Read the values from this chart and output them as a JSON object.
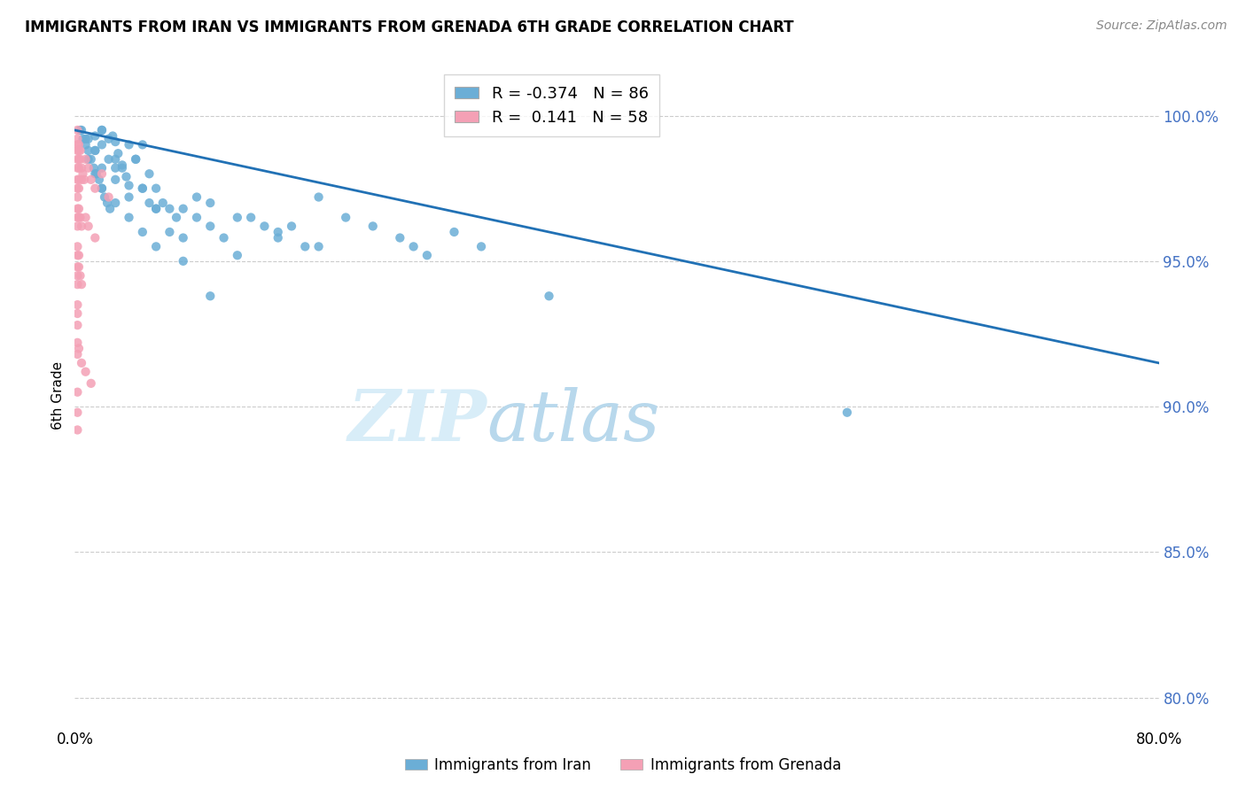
{
  "title": "IMMIGRANTS FROM IRAN VS IMMIGRANTS FROM GRENADA 6TH GRADE CORRELATION CHART",
  "source": "Source: ZipAtlas.com",
  "ylabel": "6th Grade",
  "yticks": [
    80.0,
    85.0,
    90.0,
    95.0,
    100.0
  ],
  "ytick_labels": [
    "80.0%",
    "85.0%",
    "90.0%",
    "95.0%",
    "100.0%"
  ],
  "xmin": 0.0,
  "xmax": 80.0,
  "ymin": 79.0,
  "ymax": 101.8,
  "iran_R": -0.374,
  "iran_N": 86,
  "grenada_R": 0.141,
  "grenada_N": 58,
  "iran_color": "#6baed6",
  "grenada_color": "#f4a0b5",
  "iran_line_color": "#2171b5",
  "iran_line_x0": 0.0,
  "iran_line_y0": 99.5,
  "iran_line_x1": 80.0,
  "iran_line_y1": 91.5,
  "iran_scatter_x": [
    0.4,
    0.6,
    0.8,
    1.0,
    1.2,
    1.4,
    1.6,
    1.8,
    2.0,
    2.2,
    2.4,
    2.6,
    2.8,
    3.0,
    3.2,
    3.5,
    3.8,
    4.0,
    4.5,
    5.0,
    5.5,
    6.0,
    6.5,
    7.0,
    7.5,
    8.0,
    9.0,
    10.0,
    11.0,
    12.0,
    13.0,
    14.0,
    15.0,
    16.0,
    17.0,
    18.0,
    20.0,
    22.0,
    24.0,
    25.0,
    26.0,
    28.0,
    30.0,
    35.0,
    2.0,
    2.5,
    3.0,
    3.5,
    4.0,
    4.5,
    5.0,
    5.5,
    6.0,
    7.0,
    8.0,
    9.0,
    10.0,
    12.0,
    15.0,
    18.0,
    1.0,
    1.5,
    2.0,
    3.0,
    4.0,
    5.0,
    6.0,
    8.0,
    10.0,
    0.8,
    1.5,
    2.0,
    3.0,
    0.5,
    1.0,
    1.5,
    2.0,
    2.5,
    3.0,
    4.0,
    5.0,
    6.0,
    1.5,
    2.0,
    57.0
  ],
  "iran_scatter_y": [
    99.5,
    99.2,
    99.0,
    98.8,
    98.5,
    98.2,
    98.0,
    97.8,
    97.5,
    97.2,
    97.0,
    96.8,
    99.3,
    99.1,
    98.7,
    98.3,
    97.9,
    97.6,
    98.5,
    99.0,
    98.0,
    97.5,
    97.0,
    96.8,
    96.5,
    96.8,
    97.2,
    96.2,
    95.8,
    95.2,
    96.5,
    96.2,
    95.8,
    96.2,
    95.5,
    97.2,
    96.5,
    96.2,
    95.8,
    95.5,
    95.2,
    96.0,
    95.5,
    93.8,
    99.5,
    99.2,
    98.5,
    98.2,
    99.0,
    98.5,
    97.5,
    97.0,
    96.8,
    96.0,
    95.8,
    96.5,
    97.0,
    96.5,
    96.0,
    95.5,
    98.5,
    98.0,
    97.5,
    97.0,
    96.5,
    96.0,
    95.5,
    95.0,
    93.8,
    99.2,
    98.8,
    98.2,
    97.8,
    99.5,
    99.2,
    98.8,
    99.0,
    98.5,
    98.2,
    97.2,
    97.5,
    96.8,
    99.3,
    99.5,
    89.8
  ],
  "grenada_scatter_x": [
    0.2,
    0.2,
    0.2,
    0.2,
    0.2,
    0.2,
    0.2,
    0.2,
    0.3,
    0.3,
    0.3,
    0.3,
    0.3,
    0.3,
    0.4,
    0.4,
    0.5,
    0.5,
    0.6,
    0.7,
    0.8,
    1.0,
    1.2,
    1.5,
    2.0,
    2.5,
    0.2,
    0.2,
    0.2,
    0.2,
    0.3,
    0.3,
    0.4,
    0.5,
    0.8,
    1.0,
    1.5,
    0.2,
    0.2,
    0.2,
    0.2,
    0.2,
    0.3,
    0.3,
    0.4,
    0.5,
    0.2,
    0.2,
    0.2,
    0.2,
    0.2,
    0.3,
    0.5,
    0.8,
    1.2,
    0.2,
    0.2,
    0.2
  ],
  "grenada_scatter_y": [
    99.5,
    99.2,
    99.0,
    98.8,
    98.5,
    98.2,
    97.8,
    97.5,
    99.0,
    98.8,
    98.5,
    98.2,
    97.8,
    97.5,
    98.8,
    98.5,
    98.2,
    97.8,
    98.0,
    97.8,
    98.5,
    98.2,
    97.8,
    97.5,
    98.0,
    97.2,
    97.2,
    96.8,
    96.5,
    96.2,
    96.8,
    96.5,
    96.5,
    96.2,
    96.5,
    96.2,
    95.8,
    95.5,
    95.2,
    94.8,
    94.5,
    94.2,
    95.2,
    94.8,
    94.5,
    94.2,
    93.5,
    93.2,
    92.8,
    92.2,
    91.8,
    92.0,
    91.5,
    91.2,
    90.8,
    90.5,
    89.8,
    89.2
  ]
}
